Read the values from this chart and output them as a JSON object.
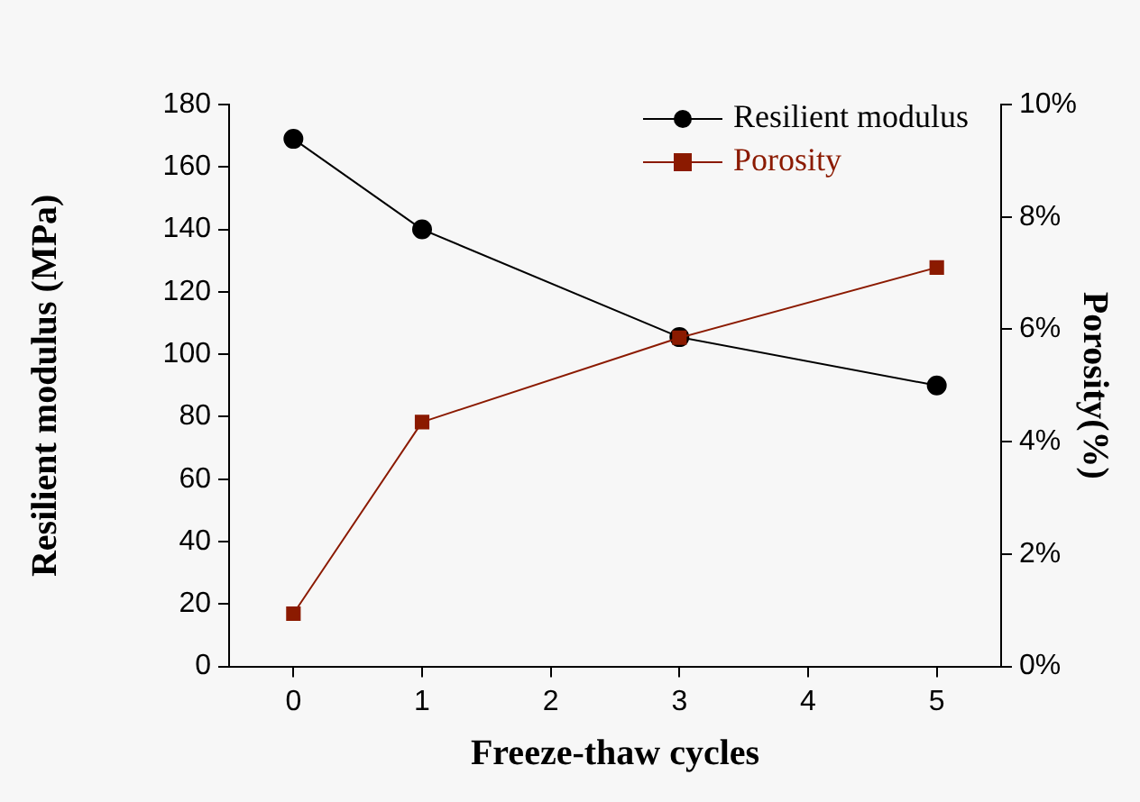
{
  "chart_data": {
    "type": "line",
    "xlabel": "Freeze-thaw cycles",
    "ylabel": "Resilient modulus (MPa)",
    "y2label": "Porosity(%)",
    "x": [
      0,
      1,
      3,
      5
    ],
    "series": [
      {
        "name": "Resilient modulus",
        "color": "#000000",
        "values": [
          169,
          140,
          105.5,
          90
        ],
        "marker": "circle"
      },
      {
        "name": "Porosity",
        "color": "#8b1a00",
        "values": [
          0.94,
          4.35,
          5.85,
          7.1
        ],
        "axis": "y2",
        "marker": "square"
      }
    ],
    "xlim": [
      -0.5,
      5.5
    ],
    "xticks": [
      0,
      1,
      2,
      3,
      4,
      5
    ],
    "ylim": [
      0,
      180
    ],
    "yticks": [
      0,
      20,
      40,
      60,
      80,
      100,
      120,
      140,
      160,
      180
    ],
    "y2lim": [
      0,
      10
    ],
    "y2ticks": [
      {
        "value": 0,
        "label": "0%"
      },
      {
        "value": 2,
        "label": "2%"
      },
      {
        "value": 4,
        "label": "4%"
      },
      {
        "value": 6,
        "label": "6%"
      },
      {
        "value": 8,
        "label": "8%"
      },
      {
        "value": 10,
        "label": "10%"
      }
    ],
    "grid": false,
    "legend": "top right",
    "line_style": "solid"
  }
}
